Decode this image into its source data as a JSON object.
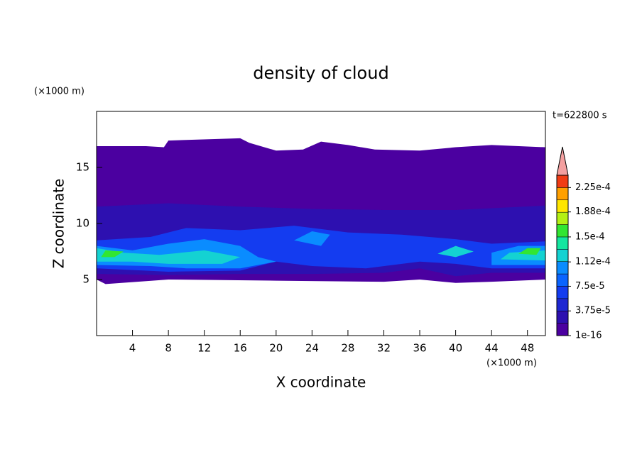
{
  "chart_data": {
    "type": "contour",
    "title": "density of cloud",
    "x_label": "X coordinate",
    "y_label": "Z coordinate",
    "x_unit": "(×1000 m)",
    "y_unit": "(×1000 m)",
    "time_label": "t=622800 s",
    "xlim": [
      0,
      50
    ],
    "ylim": [
      0,
      20
    ],
    "xticks": [
      4,
      8,
      12,
      16,
      20,
      24,
      28,
      32,
      36,
      40,
      44,
      48
    ],
    "yticks": [
      5,
      10,
      15
    ],
    "colorbar": {
      "levels": [
        1e-16,
        1.875e-05,
        3.75e-05,
        5.625e-05,
        7.5e-05,
        9.375e-05,
        0.0001125,
        0.00013125,
        0.00015,
        0.00016875,
        0.0001875,
        0.00020625,
        0.000225,
        0.00024375
      ],
      "colors": [
        "#4b00a0",
        "#2d10b0",
        "#1e28d2",
        "#143cf0",
        "#0a64ff",
        "#0a8cff",
        "#14d2d2",
        "#14e6a0",
        "#32e632",
        "#b4f014",
        "#ffe600",
        "#ffa000",
        "#f03c14"
      ],
      "extend_color": "#f4a0a0",
      "ticks": [
        {
          "value": 1e-16,
          "label": "1e-16"
        },
        {
          "value": 3.75e-05,
          "label": "3.75e-5"
        },
        {
          "value": 7.5e-05,
          "label": "7.5e-5"
        },
        {
          "value": 0.000112,
          "label": "1.12e-4"
        },
        {
          "value": 0.00015,
          "label": "1.5e-4"
        },
        {
          "value": 0.000188,
          "label": "1.88e-4"
        },
        {
          "value": 0.000225,
          "label": "2.25e-4"
        }
      ]
    },
    "regions": [
      {
        "level": 0,
        "points": [
          [
            0,
            5
          ],
          [
            0,
            16.9
          ],
          [
            5.5,
            16.9
          ],
          [
            7.5,
            16.8
          ],
          [
            8,
            17.4
          ],
          [
            16,
            17.6
          ],
          [
            17,
            17.2
          ],
          [
            20,
            16.5
          ],
          [
            23,
            16.6
          ],
          [
            25,
            17.3
          ],
          [
            28,
            17.0
          ],
          [
            31,
            16.6
          ],
          [
            36,
            16.5
          ],
          [
            40,
            16.8
          ],
          [
            44,
            17.0
          ],
          [
            50,
            16.8
          ],
          [
            50,
            5
          ],
          [
            44,
            4.8
          ],
          [
            40,
            4.7
          ],
          [
            36,
            5.0
          ],
          [
            32,
            4.8
          ],
          [
            20,
            4.9
          ],
          [
            8,
            5.0
          ],
          [
            1,
            4.6
          ]
        ]
      },
      {
        "level": 1,
        "points": [
          [
            0,
            5.5
          ],
          [
            0,
            11.5
          ],
          [
            8,
            11.8
          ],
          [
            16,
            11.5
          ],
          [
            24,
            11.3
          ],
          [
            32,
            11.2
          ],
          [
            40,
            11.2
          ],
          [
            50,
            11.6
          ],
          [
            50,
            5.6
          ],
          [
            44,
            5.6
          ],
          [
            40,
            5.3
          ],
          [
            36,
            6.0
          ],
          [
            32,
            5.6
          ],
          [
            24,
            5.5
          ],
          [
            16,
            5.5
          ],
          [
            8,
            5.4
          ]
        ]
      },
      {
        "level": 3,
        "points": [
          [
            0,
            6
          ],
          [
            0,
            8.5
          ],
          [
            6,
            8.8
          ],
          [
            10,
            9.6
          ],
          [
            16,
            9.4
          ],
          [
            22,
            9.8
          ],
          [
            28,
            9.2
          ],
          [
            34,
            9.0
          ],
          [
            40,
            8.6
          ],
          [
            44,
            8.2
          ],
          [
            50,
            8.4
          ],
          [
            50,
            6
          ],
          [
            44,
            6.0
          ],
          [
            40,
            6.4
          ],
          [
            36,
            6.6
          ],
          [
            30,
            6.0
          ],
          [
            24,
            6.2
          ],
          [
            20,
            6.6
          ],
          [
            16,
            5.8
          ],
          [
            8,
            5.7
          ]
        ]
      },
      {
        "level": 5,
        "points": [
          [
            0,
            6.3
          ],
          [
            0,
            8.0
          ],
          [
            4,
            7.6
          ],
          [
            8,
            8.2
          ],
          [
            12,
            8.6
          ],
          [
            16,
            8.0
          ],
          [
            18,
            7.0
          ],
          [
            20,
            6.6
          ],
          [
            16,
            6.0
          ],
          [
            10,
            6.0
          ],
          [
            6,
            6.2
          ]
        ]
      },
      {
        "level": 5,
        "points": [
          [
            44,
            6.3
          ],
          [
            44,
            7.4
          ],
          [
            47,
            8.0
          ],
          [
            50,
            8.0
          ],
          [
            50,
            6.3
          ]
        ]
      },
      {
        "level": 5,
        "points": [
          [
            22,
            8.5
          ],
          [
            24,
            9.3
          ],
          [
            26,
            9.0
          ],
          [
            25,
            8.0
          ]
        ]
      },
      {
        "level": 6,
        "points": [
          [
            0,
            6.6
          ],
          [
            0,
            7.8
          ],
          [
            3,
            7.4
          ],
          [
            7,
            7.2
          ],
          [
            12,
            7.6
          ],
          [
            16,
            7.0
          ],
          [
            14,
            6.4
          ],
          [
            8,
            6.4
          ],
          [
            4,
            6.6
          ]
        ]
      },
      {
        "level": 6,
        "points": [
          [
            45,
            6.8
          ],
          [
            46,
            7.4
          ],
          [
            50,
            7.6
          ],
          [
            50,
            6.7
          ]
        ]
      },
      {
        "level": 6,
        "points": [
          [
            38,
            7.3
          ],
          [
            40,
            8.0
          ],
          [
            42,
            7.5
          ],
          [
            40,
            7.0
          ]
        ]
      },
      {
        "level": 8,
        "points": [
          [
            0.5,
            7.0
          ],
          [
            1,
            7.6
          ],
          [
            3,
            7.5
          ],
          [
            2,
            7.0
          ]
        ]
      },
      {
        "level": 8,
        "points": [
          [
            47,
            7.3
          ],
          [
            48,
            7.8
          ],
          [
            49.5,
            7.8
          ],
          [
            49,
            7.2
          ]
        ]
      }
    ]
  }
}
